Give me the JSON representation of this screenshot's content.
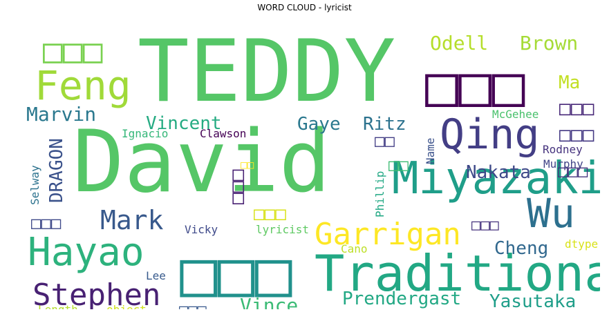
{
  "chart_data": {
    "type": "wordcloud",
    "title": "WORD CLOUD - lyricist",
    "words": [
      {
        "text": "TEDDY",
        "color": "#55c667"
      },
      {
        "text": "David",
        "color": "#55c667"
      },
      {
        "text": "Traditional",
        "color": "#22a884"
      },
      {
        "text": "Miyazaki",
        "color": "#1f9e89"
      },
      {
        "text": "Qing",
        "color": "#433e85"
      },
      {
        "text": "Feng",
        "color": "#a0da39"
      },
      {
        "text": "Hayao",
        "color": "#2db27d"
      },
      {
        "text": "Wu",
        "color": "#2d708e"
      },
      {
        "text": "Garrigan",
        "color": "#fde725"
      },
      {
        "text": "Stephen",
        "color": "#482173"
      },
      {
        "text": "Mark",
        "color": "#38598c"
      },
      {
        "text": "Odell",
        "color": "#b5de2b"
      },
      {
        "text": "Brown",
        "color": "#a5db36"
      },
      {
        "text": "Marvin",
        "color": "#2a788e"
      },
      {
        "text": "Vincent",
        "color": "#25ab82"
      },
      {
        "text": "Gaye",
        "color": "#2a788e"
      },
      {
        "text": "Ritz",
        "color": "#2c728e"
      },
      {
        "text": "Nakata",
        "color": "#3e4989"
      },
      {
        "text": "Cheng",
        "color": "#31688e"
      },
      {
        "text": "Prendergast",
        "color": "#22a884"
      },
      {
        "text": "Yasutaka",
        "color": "#1f9e89"
      },
      {
        "text": "Vince",
        "color": "#3bbb75"
      },
      {
        "text": "Ma",
        "color": "#c2df23"
      },
      {
        "text": "DRAGON",
        "color": "#3b528b"
      },
      {
        "text": "Ignacio",
        "color": "#35b779"
      },
      {
        "text": "Clawson",
        "color": "#440154"
      },
      {
        "text": "McGehee",
        "color": "#4ac16d"
      },
      {
        "text": "Rodney",
        "color": "#46337e"
      },
      {
        "text": "Murphy",
        "color": "#414487"
      },
      {
        "text": "Selway",
        "color": "#2c728e"
      },
      {
        "text": "Phillip",
        "color": "#22a884"
      },
      {
        "text": "Name",
        "color": "#3b528b"
      },
      {
        "text": "Vicky",
        "color": "#3e4989"
      },
      {
        "text": "lyricist",
        "color": "#5ec962"
      },
      {
        "text": "Cano",
        "color": "#bddf26"
      },
      {
        "text": "dtype",
        "color": "#d8e219"
      },
      {
        "text": "Lee",
        "color": "#375a8c"
      },
      {
        "text": "Length",
        "color": "#b5de2b"
      },
      {
        "text": "object",
        "color": "#d0e11c"
      },
      {
        "text": "□□□",
        "color": "#440154"
      },
      {
        "text": "□□□",
        "color": "#21918c"
      },
      {
        "text": "□□□",
        "color": "#7ad151"
      },
      {
        "text": "□□□",
        "color": "#482878"
      },
      {
        "text": "□□□",
        "color": "#443983"
      },
      {
        "text": "□□□",
        "color": "#46337e"
      },
      {
        "text": "□□",
        "color": "#433e85"
      },
      {
        "text": "□□",
        "color": "#3dbc74"
      },
      {
        "text": "□□",
        "color": "#fde725"
      },
      {
        "text": "□□□",
        "color": "#482173"
      },
      {
        "text": "□□□",
        "color": "#d8e219"
      },
      {
        "text": "□□□",
        "color": "#3e4989"
      },
      {
        "text": "□□□",
        "color": "#46337e"
      },
      {
        "text": "□□□",
        "color": "#38598c"
      }
    ]
  }
}
